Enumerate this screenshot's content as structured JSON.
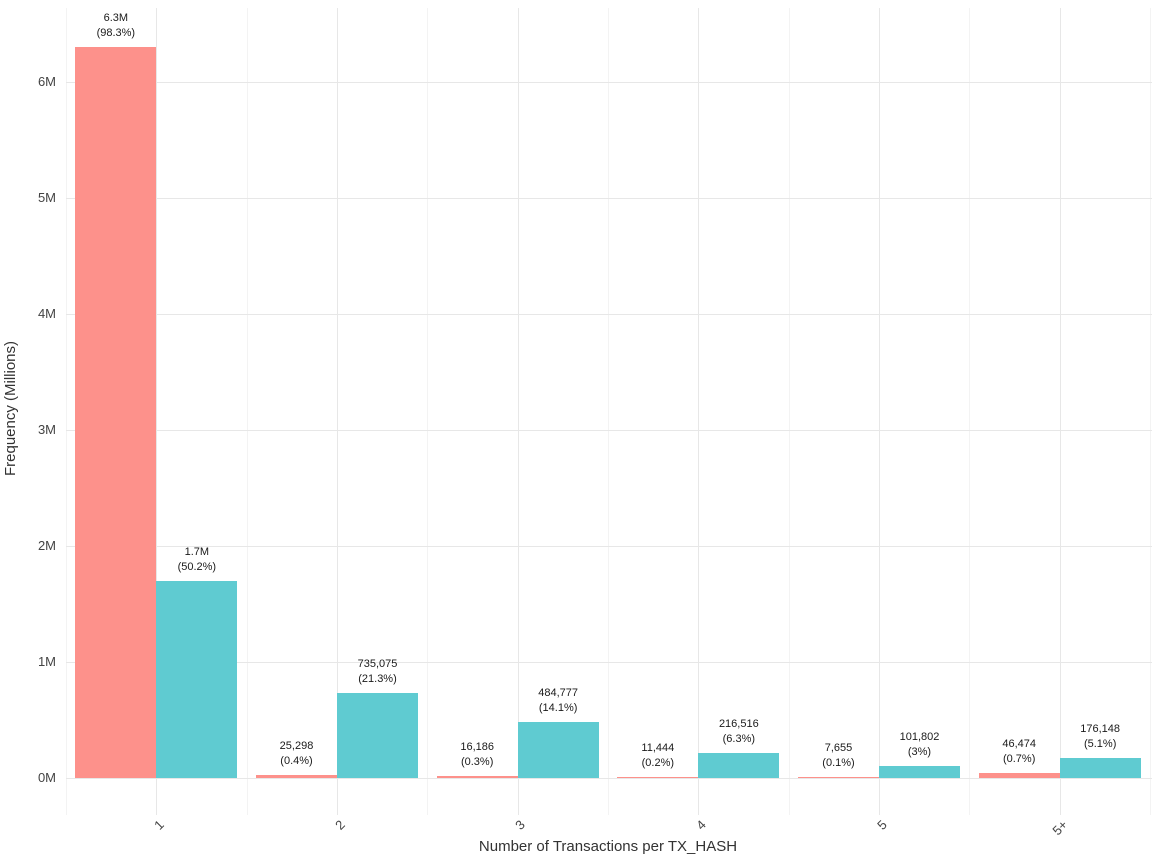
{
  "chart_data": {
    "type": "bar",
    "title": "",
    "xlabel": "Number of Transactions per TX_HASH",
    "ylabel": "Frequency (Millions)",
    "categories": [
      "1",
      "2",
      "3",
      "4",
      "5",
      "5+"
    ],
    "series": [
      {
        "name": "red",
        "color": "#FD918B",
        "values": [
          6300000,
          25298,
          16186,
          11444,
          7655,
          46474
        ],
        "bar_labels": [
          "6.3M",
          "25,298",
          "16,186",
          "11,444",
          "7,655",
          "46,474"
        ],
        "bar_sublabels": [
          "(98.3%)",
          "(0.4%)",
          "(0.3%)",
          "(0.2%)",
          "(0.1%)",
          "(0.7%)"
        ],
        "percentages": [
          98.3,
          0.4,
          0.3,
          0.2,
          0.1,
          0.7
        ]
      },
      {
        "name": "teal",
        "color": "#5FCBD1",
        "values": [
          1700000,
          735075,
          484777,
          216516,
          101802,
          176148
        ],
        "bar_labels": [
          "1.7M",
          "735,075",
          "484,777",
          "216,516",
          "101,802",
          "176,148"
        ],
        "bar_sublabels": [
          "(50.2%)",
          "(21.3%)",
          "(14.1%)",
          "(6.3%)",
          "(3%)",
          "(5.1%)"
        ],
        "percentages": [
          50.2,
          21.3,
          14.1,
          6.3,
          3,
          5.1
        ]
      }
    ],
    "y_ticks": [
      "0M",
      "1M",
      "2M",
      "3M",
      "4M",
      "5M",
      "6M"
    ],
    "y_tick_values": [
      0,
      1000000,
      2000000,
      3000000,
      4000000,
      5000000,
      6000000
    ],
    "ylim": [
      0,
      6630000
    ],
    "grid": "major-and-minor",
    "legend": "none",
    "colors": {
      "bar_red": "#FD918B",
      "bar_teal": "#5FCBD1",
      "grid_major": "#E7E7E7",
      "grid_minor": "#F3F3F3",
      "tick_text": "#444444",
      "label_text": "#1A1A1A",
      "background": "#FFFFFF"
    }
  }
}
